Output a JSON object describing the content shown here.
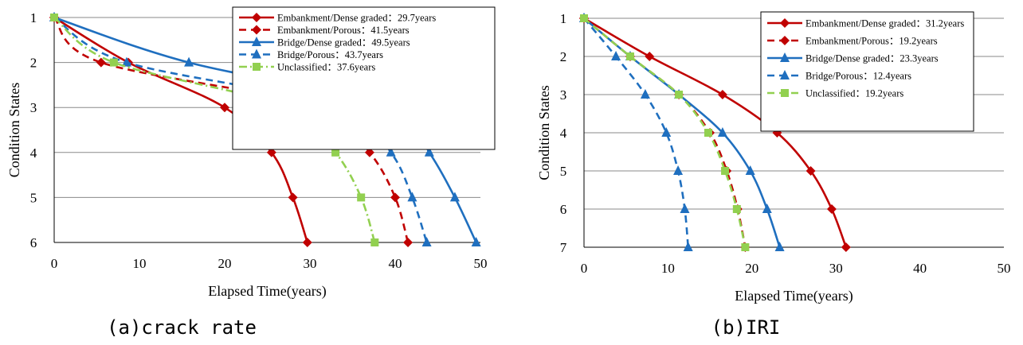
{
  "chart_data": [
    {
      "type": "line",
      "caption": "(a)crack rate",
      "xlabel": "Elapsed Time(years)",
      "ylabel": "Condition States",
      "xlim": [
        0,
        50
      ],
      "ylim": [
        1,
        6
      ],
      "y_reversed": true,
      "xticks": [
        "0",
        "10",
        "20",
        "30",
        "40",
        "50"
      ],
      "yticks": [
        "1",
        "2",
        "3",
        "4",
        "5",
        "6"
      ],
      "grid": "horizontal",
      "legend_position": "top-right",
      "series": [
        {
          "name": "Embankment/Dense graded：29.7years",
          "color": "#C00000",
          "dash": "solid",
          "marker": "diamond",
          "x": [
            0,
            8.7,
            20.0,
            25.5,
            28.0,
            29.7
          ],
          "y": [
            1,
            2,
            3,
            4,
            5,
            6
          ]
        },
        {
          "name": "Embankment/Porous：41.5years",
          "color": "#C00000",
          "dash": "dashed",
          "marker": "diamond",
          "x": [
            0,
            5.5,
            31.5,
            37.0,
            40.0,
            41.5
          ],
          "y": [
            1,
            2,
            3,
            4,
            5,
            6
          ]
        },
        {
          "name": "Bridge/Dense graded：49.5years",
          "color": "#1F6FBF",
          "dash": "solid",
          "marker": "triangle",
          "x": [
            0,
            15.8,
            40.0,
            44.0,
            47.0,
            49.5
          ],
          "y": [
            1,
            2,
            3,
            4,
            5,
            6
          ]
        },
        {
          "name": "Bridge/Porous：43.7years",
          "color": "#1F6FBF",
          "dash": "dashed",
          "marker": "triangle",
          "x": [
            0,
            8.5,
            34.2,
            39.5,
            42.0,
            43.7
          ],
          "y": [
            1,
            2,
            3,
            4,
            5,
            6
          ]
        },
        {
          "name": "Unclassified：37.6years",
          "color": "#92D050",
          "dash": "dashdot",
          "marker": "square",
          "x": [
            0,
            7.0,
            27.7,
            33.0,
            36.0,
            37.6
          ],
          "y": [
            1,
            2,
            3,
            4,
            5,
            6
          ]
        }
      ]
    },
    {
      "type": "line",
      "caption": "(b)IRI",
      "xlabel": "Elapsed Time(years)",
      "ylabel": "Condition States",
      "xlim": [
        0,
        50
      ],
      "ylim": [
        1,
        7
      ],
      "y_reversed": true,
      "xticks": [
        "0",
        "10",
        "20",
        "30",
        "40",
        "50"
      ],
      "yticks": [
        "1",
        "2",
        "3",
        "4",
        "5",
        "6",
        "7"
      ],
      "grid": "horizontal",
      "legend_position": "top-right",
      "series": [
        {
          "name": "Embankment/Dense graded：31.2years",
          "color": "#C00000",
          "dash": "solid",
          "marker": "diamond",
          "x": [
            0,
            7.8,
            16.5,
            23.0,
            27.0,
            29.5,
            31.2
          ],
          "y": [
            1,
            2,
            3,
            4,
            5,
            6,
            7
          ]
        },
        {
          "name": "Embankment/Porous：19.2years",
          "color": "#C00000",
          "dash": "dashed",
          "marker": "diamond",
          "x": [
            0,
            5.5,
            11.3,
            15.0,
            17.0,
            18.3,
            19.2
          ],
          "y": [
            1,
            2,
            3,
            4,
            5,
            6,
            7
          ]
        },
        {
          "name": "Bridge/Dense graded：23.3years",
          "color": "#1F6FBF",
          "dash": "solid",
          "marker": "triangle",
          "x": [
            0,
            5.5,
            11.3,
            16.5,
            19.8,
            21.8,
            23.3
          ],
          "y": [
            1,
            2,
            3,
            4,
            5,
            6,
            7
          ]
        },
        {
          "name": "Bridge/Porous：12.4years",
          "color": "#1F6FBF",
          "dash": "dashed",
          "marker": "triangle",
          "x": [
            0,
            3.8,
            7.3,
            9.8,
            11.2,
            12.0,
            12.4
          ],
          "y": [
            1,
            2,
            3,
            4,
            5,
            6,
            7
          ]
        },
        {
          "name": "Unclassified：19.2years",
          "color": "#92D050",
          "dash": "dashed",
          "marker": "square",
          "x": [
            0,
            5.5,
            11.3,
            14.8,
            16.8,
            18.2,
            19.2
          ],
          "y": [
            1,
            2,
            3,
            4,
            5,
            6,
            7
          ]
        }
      ]
    }
  ]
}
